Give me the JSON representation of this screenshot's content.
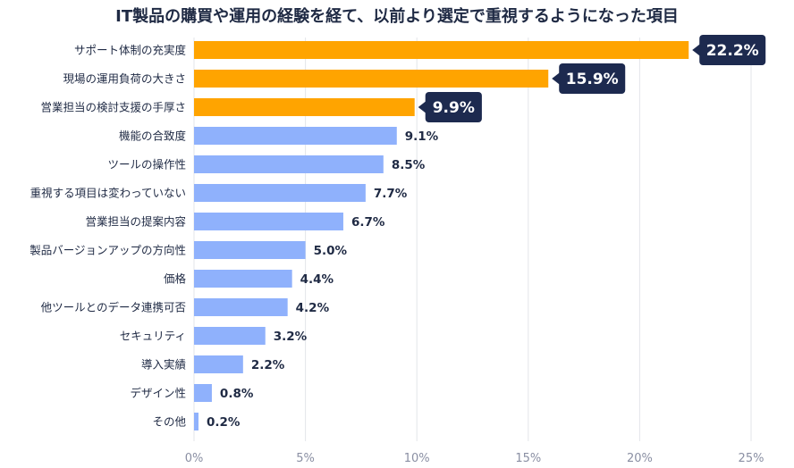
{
  "chart_data": {
    "type": "bar",
    "orientation": "horizontal",
    "title": "IT製品の購買や運用の経験を経て、以前より選定で重視するようになった項目",
    "categories": [
      "サポート体制の充実度",
      "現場の運用負荷の大きさ",
      "営業担当の検討支援の手厚さ",
      "機能の合致度",
      "ツールの操作性",
      "重視する項目は変わっていない",
      "営業担当の提案内容",
      "製品バージョンアップの方向性",
      "価格",
      "他ツールとのデータ連携可否",
      "セキュリティ",
      "導入実績",
      "デザイン性",
      "その他"
    ],
    "values": [
      22.2,
      15.9,
      9.9,
      9.1,
      8.5,
      7.7,
      6.7,
      5.0,
      4.4,
      4.2,
      3.2,
      2.2,
      0.8,
      0.2
    ],
    "value_labels": [
      "22.2%",
      "15.9%",
      "9.9%",
      "9.1%",
      "8.5%",
      "7.7%",
      "6.7%",
      "5.0%",
      "4.4%",
      "4.2%",
      "3.2%",
      "2.2%",
      "0.8%",
      "0.2%"
    ],
    "highlighted_count": 3,
    "xlim": [
      0,
      25
    ],
    "xticks": [
      0,
      5,
      10,
      15,
      20,
      25
    ],
    "xtick_labels": [
      "0%",
      "5%",
      "10%",
      "15%",
      "20%",
      "25%"
    ],
    "grid": true,
    "colors": {
      "highlight": "#FFA400",
      "normal": "#8FB1FC",
      "callout": "#1D2A4F",
      "grid": "#E3E5EA"
    }
  }
}
